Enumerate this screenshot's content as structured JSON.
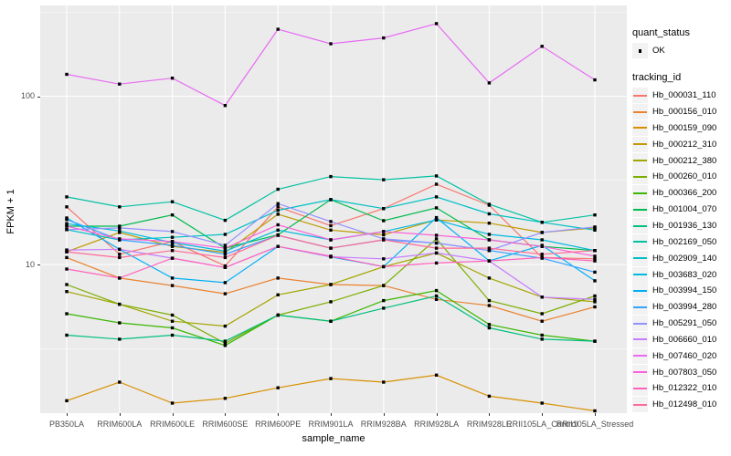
{
  "chart_data": {
    "type": "line",
    "title": "",
    "xlabel": "sample_name",
    "ylabel": "FPKM + 1",
    "yscale": "log10",
    "ylim": [
      1.28,
      350
    ],
    "grid": "major-and-minor, white on grey panel",
    "legend_position": "right",
    "panel_background": "#EBEBEB",
    "gridline_color": "#FFFFFF",
    "marker_color": "#000000",
    "yticks": [
      {
        "value": 100,
        "label": "100"
      },
      {
        "value": 10,
        "label": "10"
      }
    ],
    "minor_gridline_values": [
      3.1623,
      31.623,
      316.23
    ],
    "categories": [
      "PB350LA",
      "RRIM600LA",
      "RRIM600LE",
      "RRIM600SE",
      "RRIM600PE",
      "RRIM901LA",
      "RRIM928BA",
      "RRIM928LA",
      "RRIM928LE",
      "RRII105LA_Control",
      "RRII105LA_Stressed"
    ],
    "legend": {
      "quant_title": "quant_status",
      "quant_items": [
        {
          "label": "OK",
          "marker": "black-point"
        }
      ],
      "series_title": "tracking_id"
    },
    "series": [
      {
        "name": "Hb_000031_110",
        "color": "#F8766D",
        "values": [
          22.0,
          11.5,
          13.7,
          9.8,
          22.0,
          17.0,
          21.5,
          30.0,
          22.5,
          11.0,
          10.8
        ]
      },
      {
        "name": "Hb_000156_010",
        "color": "#EA8331",
        "values": [
          11.0,
          8.3,
          7.5,
          6.7,
          8.3,
          7.6,
          7.5,
          6.2,
          5.7,
          4.6,
          5.6
        ]
      },
      {
        "name": "Hb_000159_090",
        "color": "#D89000",
        "values": [
          1.55,
          2.0,
          1.5,
          1.6,
          1.85,
          2.1,
          2.0,
          2.2,
          1.65,
          1.5,
          1.35
        ]
      },
      {
        "name": "Hb_000212_310",
        "color": "#C09B00",
        "values": [
          11.9,
          15.5,
          12.8,
          11.8,
          19.9,
          16.0,
          15.0,
          18.4,
          17.6,
          15.5,
          16.5
        ]
      },
      {
        "name": "Hb_000212_380",
        "color": "#A3A500",
        "values": [
          6.9,
          5.8,
          4.6,
          4.3,
          6.6,
          7.6,
          9.7,
          11.7,
          8.3,
          6.4,
          6.0
        ]
      },
      {
        "name": "Hb_000260_010",
        "color": "#7CAE00",
        "values": [
          7.6,
          5.8,
          5.0,
          3.4,
          5.0,
          6.0,
          7.5,
          14.2,
          6.1,
          5.1,
          6.5
        ]
      },
      {
        "name": "Hb_000366_200",
        "color": "#39B600",
        "values": [
          5.1,
          4.5,
          4.2,
          3.3,
          5.0,
          4.6,
          6.1,
          7.0,
          4.4,
          3.8,
          3.5
        ]
      },
      {
        "name": "Hb_001004_070",
        "color": "#00BB4E",
        "values": [
          16.9,
          16.9,
          19.7,
          12.5,
          15.0,
          24.3,
          18.2,
          21.7,
          14.0,
          12.8,
          12.1
        ]
      },
      {
        "name": "Hb_001936_130",
        "color": "#00BF7D",
        "values": [
          3.8,
          3.6,
          3.8,
          3.5,
          5.0,
          4.6,
          5.5,
          6.5,
          4.2,
          3.6,
          3.5
        ]
      },
      {
        "name": "Hb_002169_050",
        "color": "#00C1A3",
        "values": [
          25.2,
          22.0,
          23.6,
          18.3,
          28.0,
          33.3,
          31.9,
          33.6,
          22.8,
          17.8,
          19.7
        ]
      },
      {
        "name": "Hb_002909_140",
        "color": "#00BFC4",
        "values": [
          16.1,
          14.0,
          14.5,
          15.1,
          21.0,
          24.3,
          21.5,
          25.2,
          20.0,
          17.8,
          16.0
        ]
      },
      {
        "name": "Hb_003683_020",
        "color": "#00BAE0",
        "values": [
          17.5,
          15.8,
          13.5,
          12.0,
          16.0,
          14.0,
          15.7,
          18.4,
          15.1,
          14.0,
          12.1
        ]
      },
      {
        "name": "Hb_003994_150",
        "color": "#00B0F6",
        "values": [
          18.9,
          12.3,
          8.3,
          7.8,
          12.8,
          11.1,
          9.7,
          19.0,
          10.5,
          13.0,
          8.0
        ]
      },
      {
        "name": "Hb_003994_280",
        "color": "#35A2FF",
        "values": [
          18.5,
          14.0,
          13.0,
          11.5,
          14.9,
          12.5,
          14.0,
          13.4,
          12.1,
          10.9,
          9.0
        ]
      },
      {
        "name": "Hb_005291_050",
        "color": "#9590FF",
        "values": [
          16.1,
          16.5,
          15.7,
          13.0,
          23.0,
          18.0,
          14.2,
          13.4,
          12.1,
          15.5,
          16.7
        ]
      },
      {
        "name": "Hb_006660_010",
        "color": "#C77CFF",
        "values": [
          12.2,
          12.3,
          10.9,
          9.6,
          12.8,
          11.1,
          10.8,
          11.7,
          10.5,
          6.4,
          6.2
        ]
      },
      {
        "name": "Hb_007460_020",
        "color": "#E76BF3",
        "values": [
          135,
          118,
          128,
          88,
          250,
          205,
          222,
          270,
          120,
          198,
          125
        ]
      },
      {
        "name": "Hb_007803_050",
        "color": "#FA62DB",
        "values": [
          16.9,
          14.2,
          13.7,
          12.5,
          17.2,
          14.0,
          15.7,
          14.9,
          14.0,
          12.8,
          11.2
        ]
      },
      {
        "name": "Hb_012322_010",
        "color": "#FF62BC",
        "values": [
          9.4,
          8.3,
          10.9,
          9.6,
          12.8,
          11.2,
          9.7,
          10.2,
          10.5,
          11.0,
          10.5
        ]
      },
      {
        "name": "Hb_012498_010",
        "color": "#FF6A98",
        "values": [
          11.9,
          11.0,
          12.1,
          11.0,
          14.9,
          12.5,
          14.0,
          12.5,
          12.5,
          11.5,
          12.1
        ]
      }
    ]
  }
}
